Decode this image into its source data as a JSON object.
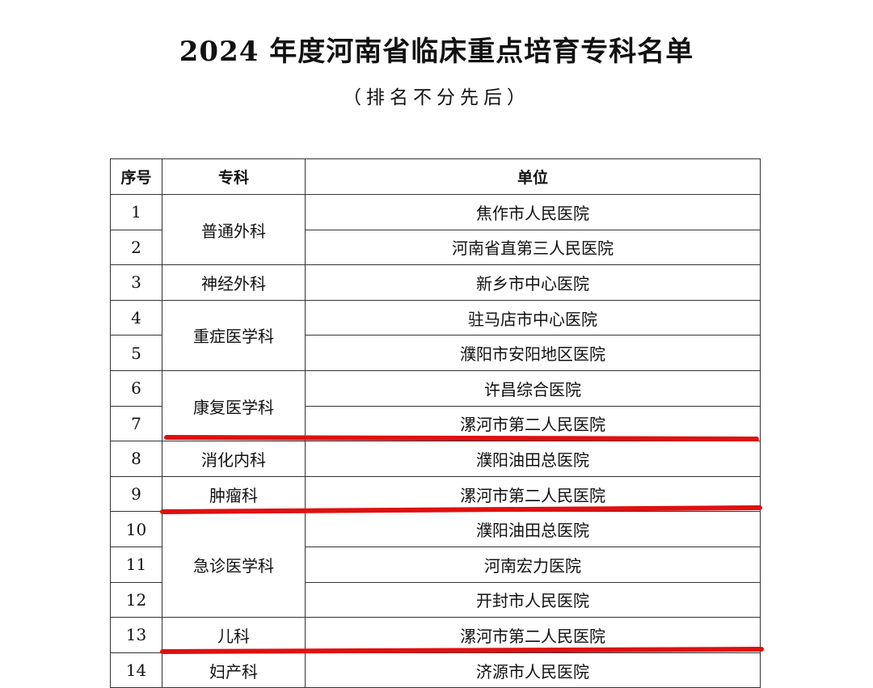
{
  "document": {
    "title": "2024 年度河南省临床重点培育专科名单",
    "subtitle": "（排名不分先后）"
  },
  "table": {
    "headers": [
      "序号",
      "专科",
      "单位"
    ],
    "groups": [
      {
        "dept": "普通外科",
        "rows": [
          {
            "no": "1",
            "unit": "焦作市人民医院"
          },
          {
            "no": "2",
            "unit": "河南省直第三人民医院"
          }
        ]
      },
      {
        "dept": "神经外科",
        "rows": [
          {
            "no": "3",
            "unit": "新乡市中心医院"
          }
        ]
      },
      {
        "dept": "重症医学科",
        "rows": [
          {
            "no": "4",
            "unit": "驻马店市中心医院"
          },
          {
            "no": "5",
            "unit": "濮阳市安阳地区医院"
          }
        ]
      },
      {
        "dept": "康复医学科",
        "rows": [
          {
            "no": "6",
            "unit": "许昌综合医院"
          },
          {
            "no": "7",
            "unit": "漯河市第二人民医院"
          }
        ]
      },
      {
        "dept": "消化内科",
        "rows": [
          {
            "no": "8",
            "unit": "濮阳油田总医院"
          }
        ]
      },
      {
        "dept": "肿瘤科",
        "rows": [
          {
            "no": "9",
            "unit": "漯河市第二人民医院"
          }
        ]
      },
      {
        "dept": "急诊医学科",
        "rows": [
          {
            "no": "10",
            "unit": "濮阳油田总医院"
          },
          {
            "no": "11",
            "unit": "河南宏力医院"
          },
          {
            "no": "12",
            "unit": "开封市人民医院"
          }
        ]
      },
      {
        "dept": "儿科",
        "rows": [
          {
            "no": "13",
            "unit": "漯河市第二人民医院"
          }
        ]
      },
      {
        "dept": "妇产科",
        "rows": [
          {
            "no": "14",
            "unit": "济源市人民医院"
          }
        ]
      }
    ]
  },
  "annotations": {
    "underline_color": "#e01010",
    "underlined_rows": [
      "7",
      "9",
      "13"
    ]
  }
}
